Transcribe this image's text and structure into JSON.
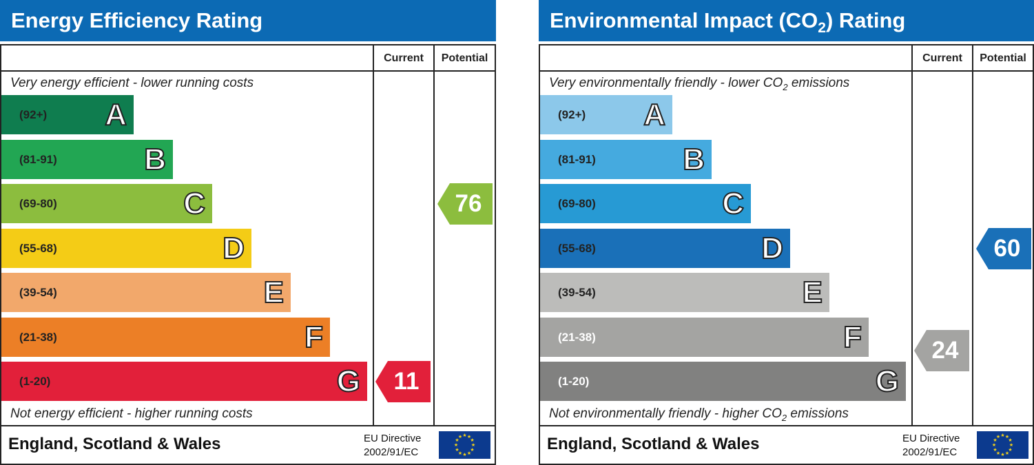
{
  "chart_data": [
    {
      "type": "bar",
      "title": "Energy Efficiency Rating",
      "column_headers": [
        "Current",
        "Potential"
      ],
      "top_caption": "Very energy efficient - lower running costs",
      "bottom_caption": "Not energy efficient - higher running costs",
      "bands": [
        {
          "letter": "A",
          "range": "(92+)",
          "color": "#0f7d4f"
        },
        {
          "letter": "B",
          "range": "(81-91)",
          "color": "#22a653"
        },
        {
          "letter": "C",
          "range": "(69-80)",
          "color": "#8cbd3e"
        },
        {
          "letter": "D",
          "range": "(55-68)",
          "color": "#f4cc16"
        },
        {
          "letter": "E",
          "range": "(39-54)",
          "color": "#f2a86b"
        },
        {
          "letter": "F",
          "range": "(21-38)",
          "color": "#ec7f26"
        },
        {
          "letter": "G",
          "range": "(1-20)",
          "color": "#e2203a"
        }
      ],
      "current": {
        "value": 11,
        "band": "G",
        "color": "#e2203a"
      },
      "potential": {
        "value": 76,
        "band": "C",
        "color": "#8cbd3e"
      },
      "footer": "England, Scotland & Wales",
      "directive_line1": "EU Directive",
      "directive_line2": "2002/91/EC"
    },
    {
      "type": "bar",
      "title": "Environmental Impact (CO",
      "title_sub": "2",
      "title_end": ") Rating",
      "column_headers": [
        "Current",
        "Potential"
      ],
      "top_caption": "Very environmentally friendly - lower CO",
      "top_caption_end": " emissions",
      "bottom_caption": "Not environmentally friendly - higher CO",
      "bottom_caption_end": " emissions",
      "bands": [
        {
          "letter": "A",
          "range": "(92+)",
          "color": "#8cc8ea"
        },
        {
          "letter": "B",
          "range": "(81-91)",
          "color": "#45aadf"
        },
        {
          "letter": "C",
          "range": "(69-80)",
          "color": "#279ad4"
        },
        {
          "letter": "D",
          "range": "(55-68)",
          "color": "#1a70b8"
        },
        {
          "letter": "E",
          "range": "(39-54)",
          "color": "#bcbcba"
        },
        {
          "letter": "F",
          "range": "(21-38)",
          "color": "#a4a4a2"
        },
        {
          "letter": "G",
          "range": "(1-20)",
          "color": "#818180"
        }
      ],
      "current": {
        "value": 24,
        "band": "F",
        "color": "#a4a4a2"
      },
      "potential": {
        "value": 60,
        "band": "D",
        "color": "#1a70b8"
      },
      "footer": "England, Scotland & Wales",
      "directive_line1": "EU Directive",
      "directive_line2": "2002/91/EC"
    }
  ]
}
